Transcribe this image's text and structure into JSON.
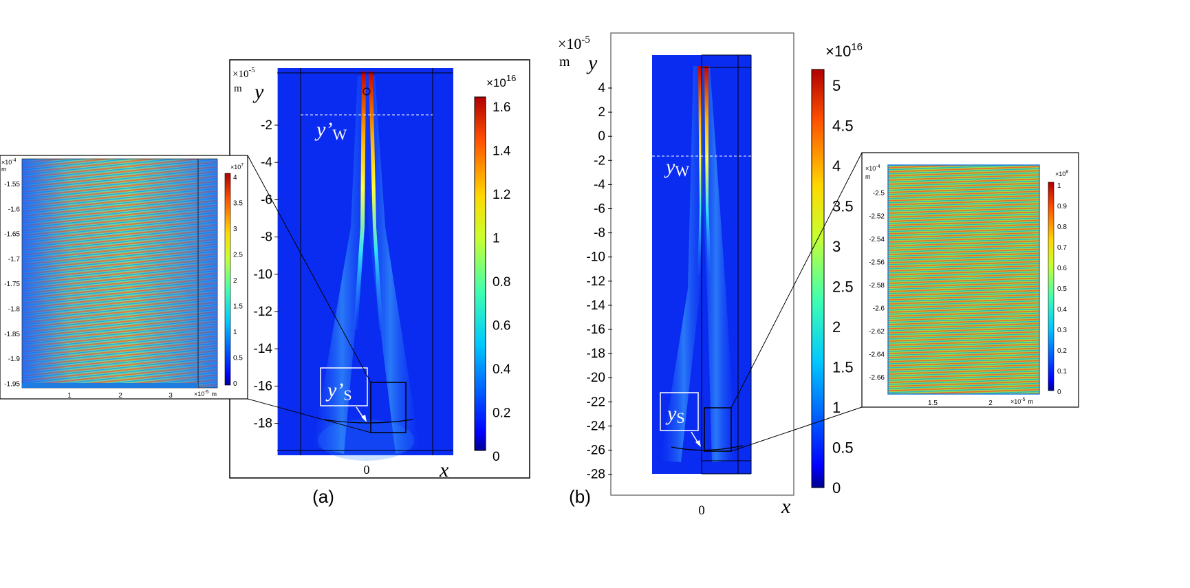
{
  "panel_a": {
    "label": "(a)",
    "y_axis_multiplier": "×10",
    "y_axis_exponent": "-5",
    "y_axis_unit": "m",
    "y_axis_name": "y",
    "x_axis_name": "x",
    "y_ticks": [
      "-2",
      "-4",
      "-6",
      "-8",
      "-10",
      "-12",
      "-14",
      "-16",
      "-18"
    ],
    "x_ticks": [
      "0"
    ],
    "colorbar_multiplier": "×10",
    "colorbar_exponent": "16",
    "colorbar_ticks": [
      "1.6",
      "1.4",
      "1.2",
      "1",
      "0.8",
      "0.6",
      "0.4",
      "0.2",
      "0"
    ],
    "annotation_yw": "y’",
    "annotation_yw_sub": "W",
    "annotation_ys": "y’",
    "annotation_ys_sub": "S",
    "inset": {
      "y_multiplier": "×10",
      "y_exponent": "-4",
      "y_unit": "m",
      "y_ticks": [
        "-1.55",
        "-1.6",
        "-1.65",
        "-1.7",
        "-1.75",
        "-1.8",
        "-1.85",
        "-1.9",
        "-1.95"
      ],
      "x_ticks": [
        "1",
        "2",
        "3"
      ],
      "x_multiplier": "×10",
      "x_exponent": "-5",
      "x_unit": "m",
      "colorbar_multiplier": "×10",
      "colorbar_exponent": "7",
      "colorbar_ticks": [
        "4",
        "3.5",
        "3",
        "2.5",
        "2",
        "1.5",
        "1",
        "0.5",
        "0"
      ]
    }
  },
  "panel_b": {
    "label": "(b)",
    "y_axis_multiplier": "×10",
    "y_axis_exponent": "-5",
    "y_axis_unit": "m",
    "y_axis_name": "y",
    "x_axis_name": "x",
    "y_ticks": [
      "4",
      "2",
      "0",
      "-2",
      "-4",
      "-6",
      "-8",
      "-10",
      "-12",
      "-14",
      "-16",
      "-18",
      "-20",
      "-22",
      "-24",
      "-26",
      "-28"
    ],
    "x_ticks": [
      "0"
    ],
    "colorbar_multiplier": "×10",
    "colorbar_exponent": "16",
    "colorbar_ticks": [
      "5",
      "4.5",
      "4",
      "3.5",
      "3",
      "2.5",
      "2",
      "1.5",
      "1",
      "0.5",
      "0"
    ],
    "annotation_yw": "y",
    "annotation_yw_sub": "W",
    "annotation_ys": "y",
    "annotation_ys_sub": "S",
    "inset": {
      "y_multiplier": "×10",
      "y_exponent": "-4",
      "y_unit": "m",
      "y_ticks": [
        "-2.5",
        "-2.52",
        "-2.54",
        "-2.56",
        "-2.58",
        "-2.6",
        "-2.62",
        "-2.64",
        "-2.66"
      ],
      "x_ticks": [
        "1.5",
        "2"
      ],
      "x_multiplier": "×10",
      "x_exponent": "-5",
      "x_unit": "m",
      "colorbar_multiplier": "×10",
      "colorbar_exponent": "8",
      "colorbar_ticks": [
        "1",
        "0.9",
        "0.8",
        "0.7",
        "0.6",
        "0.5",
        "0.4",
        "0.3",
        "0.2",
        "0.1",
        "0"
      ]
    }
  },
  "colors": {
    "field_background": "#0a2cf0",
    "white_box": "#ffffff",
    "frame": "#000000"
  }
}
